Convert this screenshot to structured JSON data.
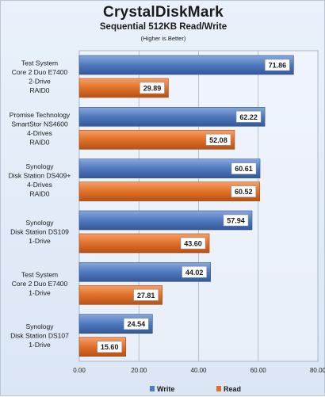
{
  "chart_data": {
    "type": "bar",
    "orientation": "horizontal",
    "title": "CrystalDiskMark",
    "subtitle": "Sequential 512KB Read/Write",
    "note": "(Higher is Better)",
    "xlim": [
      0,
      80
    ],
    "xticks": [
      "0.00",
      "20.00",
      "40.00",
      "60.00",
      "80.00"
    ],
    "grid": true,
    "legend_position": "bottom",
    "categories": [
      [
        "Test System",
        "Core 2 Duo E7400",
        "2-Drive",
        "RAID0"
      ],
      [
        "Promise Technology",
        "SmartStor NS4600",
        "4-Drives",
        "RAID0"
      ],
      [
        "Synology",
        "Disk Station DS409+",
        "4-Drives",
        "RAID0"
      ],
      [
        "Synology",
        "Disk Station DS109",
        "1-Drive"
      ],
      [
        "Test System",
        "Core 2 Duo E7400",
        "1-Drive"
      ],
      [
        "Synology",
        "Disk Station DS107",
        "1-Drive"
      ]
    ],
    "series": [
      {
        "name": "Write",
        "color": "#4f79bd",
        "values": [
          71.86,
          62.22,
          60.61,
          57.94,
          44.02,
          24.54
        ],
        "labels": [
          "71.86",
          "62.22",
          "60.61",
          "57.94",
          "44.02",
          "24.54"
        ]
      },
      {
        "name": "Read",
        "color": "#e07028",
        "values": [
          29.89,
          52.08,
          60.52,
          43.6,
          27.81,
          15.6
        ],
        "labels": [
          "29.89",
          "52.08",
          "60.52",
          "43.60",
          "27.81",
          "15.60"
        ]
      }
    ]
  }
}
